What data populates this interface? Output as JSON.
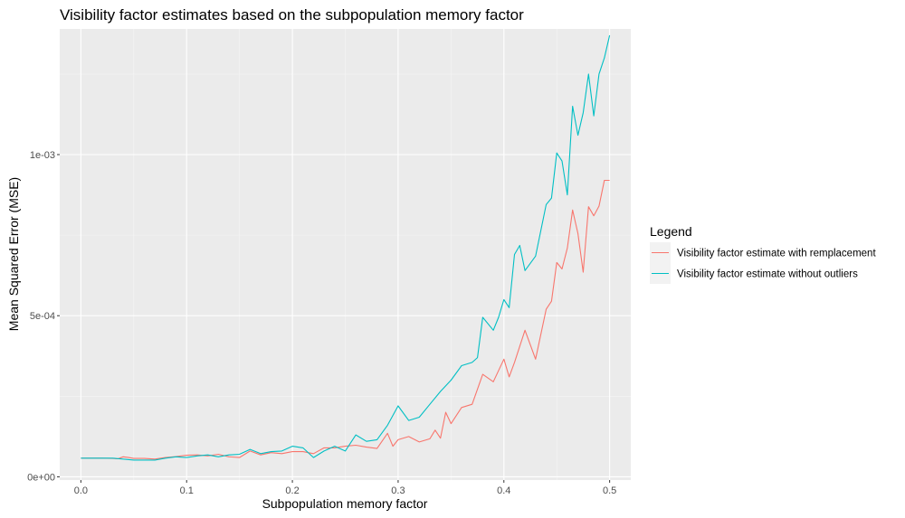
{
  "chart_data": {
    "type": "line",
    "title": "Visibility factor estimates based on the subpopulation memory factor",
    "xlabel": "Subpopulation memory factor",
    "ylabel": "Mean Squared Error (MSE)",
    "xlim": [
      -0.02,
      0.52
    ],
    "ylim": [
      -1e-05,
      0.00139
    ],
    "x_ticks": [
      0.0,
      0.1,
      0.2,
      0.3,
      0.4,
      0.5
    ],
    "x_tick_labels": [
      "0.0",
      "0.1",
      "0.2",
      "0.3",
      "0.4",
      "0.5"
    ],
    "y_ticks": [
      0,
      0.0005,
      0.001
    ],
    "y_tick_labels": [
      "0e+00",
      "5e-04",
      "1e-03"
    ],
    "grid": true,
    "legend_title": "Legend",
    "legend_position": "right",
    "series": [
      {
        "name": "Visibility factor estimate with remplacement",
        "color": "#F8766D",
        "x": [
          0.0,
          0.01,
          0.02,
          0.03,
          0.035,
          0.04,
          0.045,
          0.05,
          0.06,
          0.07,
          0.08,
          0.09,
          0.1,
          0.11,
          0.12,
          0.13,
          0.14,
          0.15,
          0.16,
          0.17,
          0.18,
          0.19,
          0.2,
          0.21,
          0.22,
          0.23,
          0.24,
          0.25,
          0.26,
          0.27,
          0.28,
          0.29,
          0.295,
          0.3,
          0.31,
          0.32,
          0.33,
          0.335,
          0.34,
          0.345,
          0.35,
          0.36,
          0.37,
          0.38,
          0.39,
          0.4,
          0.405,
          0.41,
          0.42,
          0.43,
          0.44,
          0.445,
          0.45,
          0.455,
          0.46,
          0.465,
          0.47,
          0.475,
          0.48,
          0.485,
          0.49,
          0.495,
          0.5
        ],
        "y": [
          5.8e-05,
          5.8e-05,
          5.8e-05,
          5.7e-05,
          5.6e-05,
          6.2e-05,
          6e-05,
          5.7e-05,
          5.7e-05,
          5.5e-05,
          6e-05,
          6.3e-05,
          6.7e-05,
          6.8e-05,
          6.5e-05,
          7e-05,
          6.2e-05,
          6e-05,
          8e-05,
          6.8e-05,
          7.5e-05,
          7.2e-05,
          7.8e-05,
          7.8e-05,
          7.2e-05,
          9e-05,
          9e-05,
          9.5e-05,
          9.8e-05,
          9.2e-05,
          8.8e-05,
          0.000135,
          9.5e-05,
          0.000115,
          0.000125,
          0.000108,
          0.000118,
          0.000145,
          0.00012,
          0.0002,
          0.000165,
          0.000215,
          0.000225,
          0.000318,
          0.000295,
          0.000365,
          0.00031,
          0.000355,
          0.000455,
          0.000365,
          0.00052,
          0.000545,
          0.000665,
          0.000645,
          0.00071,
          0.000828,
          0.000755,
          0.000635,
          0.000838,
          0.00081,
          0.00084,
          0.00092,
          0.00092
        ]
      },
      {
        "name": "Visibility factor estimate without outliers",
        "color": "#00BFC4",
        "x": [
          0.0,
          0.01,
          0.02,
          0.03,
          0.04,
          0.05,
          0.06,
          0.07,
          0.08,
          0.09,
          0.1,
          0.11,
          0.12,
          0.13,
          0.14,
          0.15,
          0.16,
          0.17,
          0.18,
          0.19,
          0.2,
          0.21,
          0.22,
          0.23,
          0.24,
          0.25,
          0.26,
          0.27,
          0.28,
          0.29,
          0.3,
          0.31,
          0.32,
          0.33,
          0.34,
          0.35,
          0.36,
          0.37,
          0.375,
          0.38,
          0.39,
          0.395,
          0.4,
          0.405,
          0.41,
          0.415,
          0.42,
          0.43,
          0.44,
          0.445,
          0.45,
          0.455,
          0.46,
          0.465,
          0.47,
          0.475,
          0.48,
          0.485,
          0.49,
          0.495,
          0.5
        ],
        "y": [
          5.8e-05,
          5.8e-05,
          5.8e-05,
          5.8e-05,
          5.5e-05,
          5.2e-05,
          5.2e-05,
          5.2e-05,
          5.8e-05,
          6.2e-05,
          6e-05,
          6.5e-05,
          6.8e-05,
          6.2e-05,
          6.8e-05,
          7e-05,
          8.5e-05,
          7.2e-05,
          7.8e-05,
          8e-05,
          9.5e-05,
          9e-05,
          6e-05,
          8e-05,
          9.5e-05,
          8e-05,
          0.00013,
          0.00011,
          0.000115,
          0.00016,
          0.00022,
          0.000175,
          0.000185,
          0.000225,
          0.000265,
          0.0003,
          0.000345,
          0.000355,
          0.00037,
          0.000495,
          0.000455,
          0.000495,
          0.00055,
          0.000525,
          0.00069,
          0.000718,
          0.00064,
          0.000685,
          0.000845,
          0.000865,
          0.001005,
          0.00098,
          0.000875,
          0.00115,
          0.00106,
          0.00113,
          0.00125,
          0.00112,
          0.00125,
          0.0013,
          0.00137
        ]
      }
    ]
  }
}
